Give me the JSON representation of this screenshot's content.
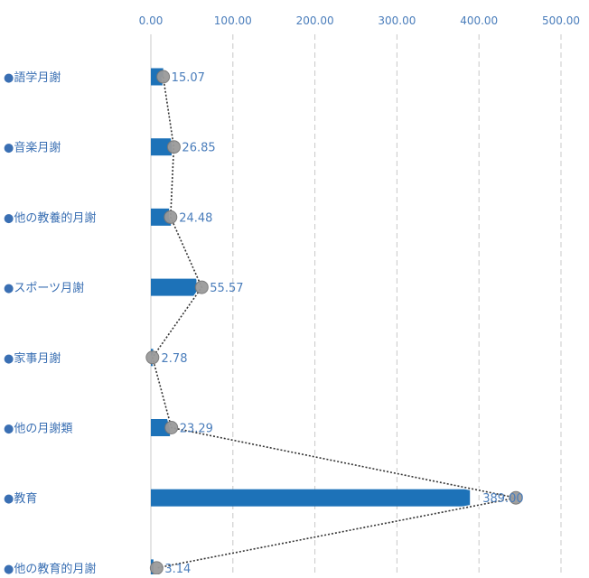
{
  "chart_data": {
    "type": "bar",
    "orientation": "horizontal",
    "categories": [
      "●語学月謝",
      "●音楽月謝",
      "●他の教養的月謝",
      "●スポーツ月謝",
      "●家事月謝",
      "●他の月謝類",
      "●教育",
      "●他の教育的月謝"
    ],
    "series": [
      {
        "values": [
          15.07,
          26.85,
          24.48,
          55.57,
          2.78,
          23.29,
          389.0,
          3.14
        ],
        "data_labels": [
          "15.07",
          "26.85",
          "24.48",
          "55.57",
          "2.78",
          "23.29",
          "389.00",
          "3.14"
        ]
      }
    ],
    "overlay_line": {
      "values": [
        15.0,
        28.0,
        24.0,
        62.0,
        2.0,
        25.0,
        445.0,
        7.0
      ],
      "style": "dotted"
    },
    "xlim": [
      0,
      500
    ],
    "x_ticks": [
      "0.00",
      "100.00",
      "200.00",
      "300.00",
      "400.00",
      "500.00"
    ],
    "x_axis_position": "top",
    "grid": "vertical dashed",
    "colors": {
      "bar": "#1d72b8",
      "marker": "#9a9a9a",
      "marker_edge": "#777777",
      "line": "#333333",
      "gridline": "#c8c8c8",
      "axis_text": "#4a7dbb"
    }
  }
}
